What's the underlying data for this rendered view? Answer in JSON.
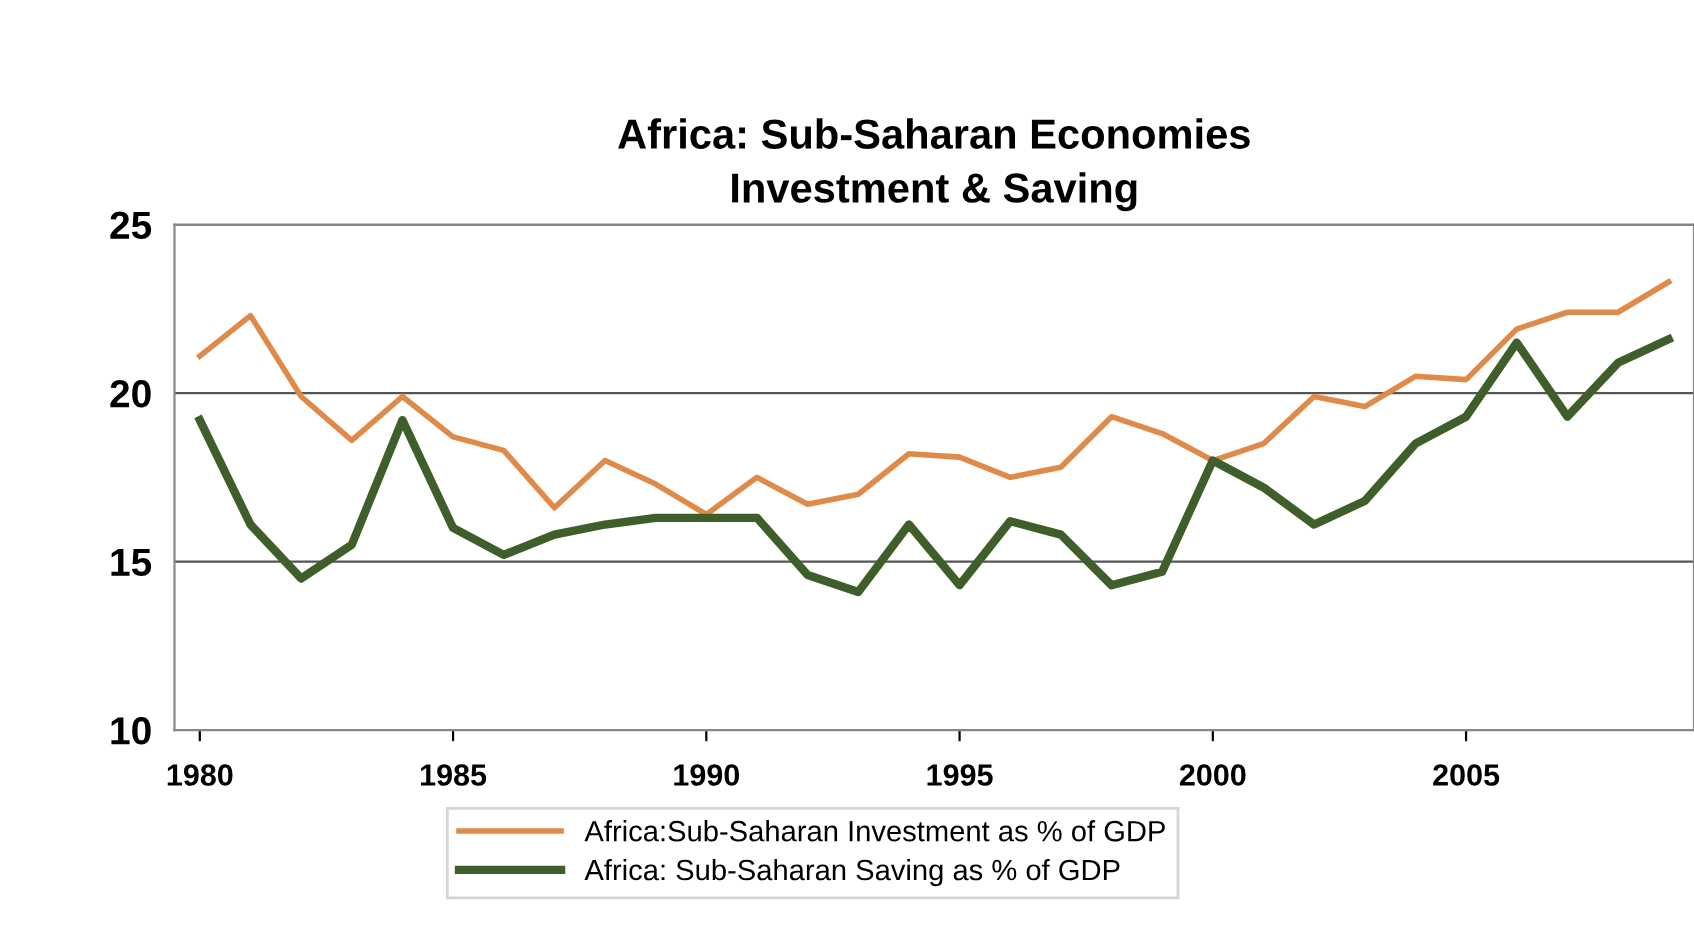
{
  "chart_data": {
    "type": "line",
    "title": "Africa: Sub-Saharan Economies\nInvestment & Saving",
    "x": [
      1980,
      1981,
      1982,
      1983,
      1984,
      1985,
      1986,
      1987,
      1988,
      1989,
      1990,
      1991,
      1992,
      1993,
      1994,
      1995,
      1996,
      1997,
      1998,
      1999,
      2000,
      2001,
      2002,
      2003,
      2004,
      2005,
      2006,
      2007,
      2008,
      2009
    ],
    "series": [
      {
        "name": "Africa:Sub-Saharan Investment as % of GDP",
        "color": "#e08a4a",
        "values": [
          21.1,
          22.3,
          19.9,
          18.6,
          19.9,
          18.7,
          18.3,
          16.6,
          18.0,
          17.3,
          16.4,
          17.5,
          16.7,
          17.0,
          18.2,
          18.1,
          17.5,
          17.8,
          19.3,
          18.8,
          18.0,
          18.5,
          19.9,
          19.6,
          20.5,
          20.4,
          21.9,
          22.4,
          22.4,
          23.3
        ]
      },
      {
        "name": "Africa: Sub-Saharan Saving as % of GDP",
        "color": "#3e5e2a",
        "values": [
          19.2,
          16.1,
          14.5,
          15.5,
          19.2,
          16.0,
          15.2,
          15.8,
          16.1,
          16.3,
          16.3,
          16.3,
          14.6,
          14.1,
          16.1,
          14.3,
          16.2,
          15.8,
          14.3,
          14.7,
          18.0,
          17.2,
          16.1,
          16.8,
          18.5,
          19.3,
          21.5,
          19.3,
          20.9,
          21.6
        ]
      }
    ],
    "xlim": [
      1979.5,
      2009.5
    ],
    "xticks": [
      1980,
      1985,
      1990,
      1995,
      2000,
      2005
    ],
    "ylim": [
      10,
      25
    ],
    "yticks": [
      10,
      15,
      20,
      25
    ],
    "grid": "y",
    "legend": "bottom",
    "marker": "none",
    "line_style": "solid"
  }
}
